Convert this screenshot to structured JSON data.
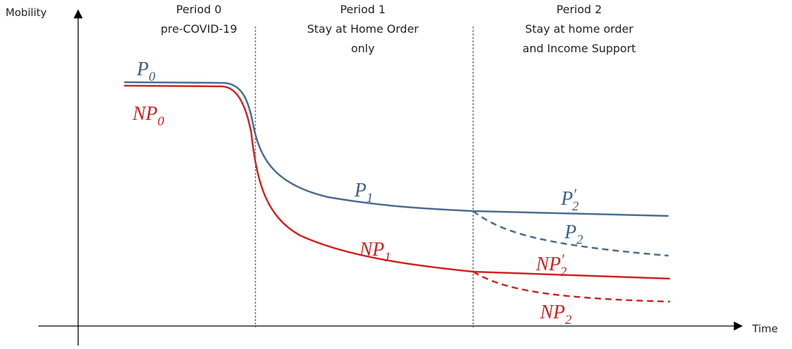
{
  "axes": {
    "y_label": "Mobility",
    "x_label": "Time"
  },
  "periods": [
    {
      "lines": [
        "Period 0",
        "pre-COVID-19"
      ]
    },
    {
      "lines": [
        "Period 1",
        "Stay at Home Order",
        "only"
      ]
    },
    {
      "lines": [
        "Period 2",
        "Stay at home order",
        "and Income Support"
      ]
    }
  ],
  "curve_labels": [
    {
      "base": "P",
      "sub": "0"
    },
    {
      "base": "NP",
      "sub": "0"
    },
    {
      "base": "P",
      "sub": "1"
    },
    {
      "base": "NP",
      "sub": "1"
    },
    {
      "base": "P",
      "prime": "′",
      "sub": "2"
    },
    {
      "base": "P",
      "sub": "2"
    },
    {
      "base": "NP",
      "prime": "′",
      "sub": "2"
    },
    {
      "base": "NP",
      "sub": "2"
    }
  ]
}
